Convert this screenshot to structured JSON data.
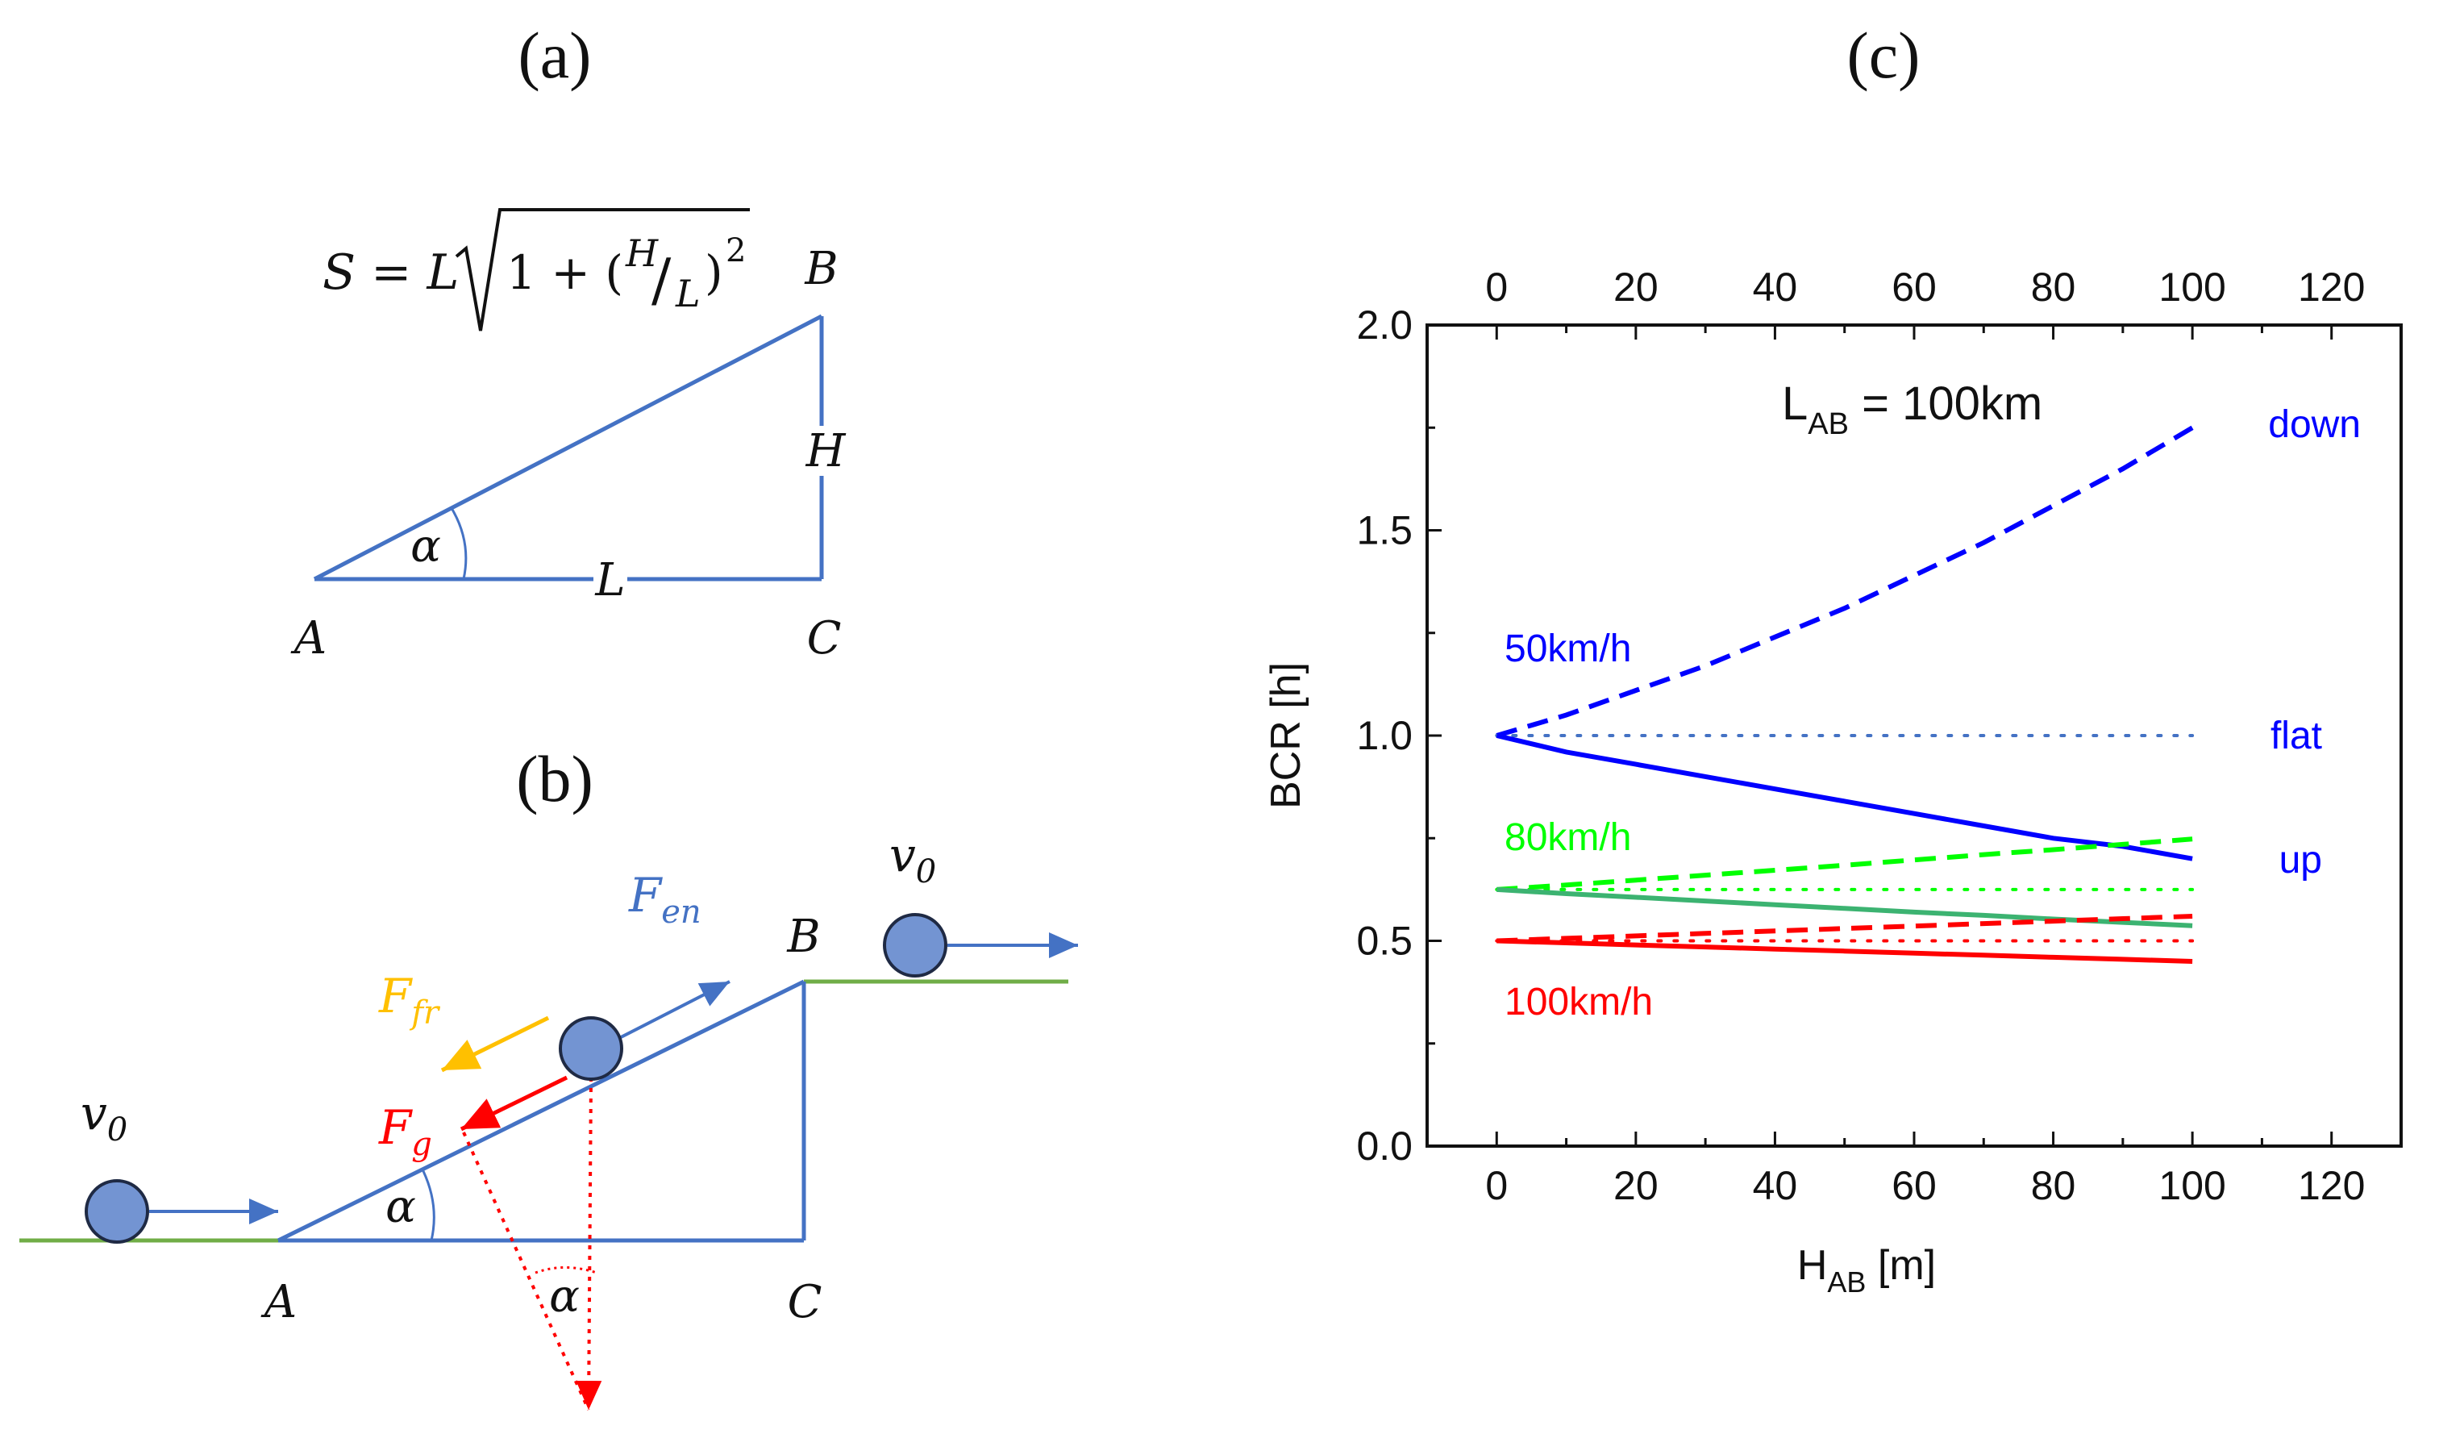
{
  "panels": {
    "a": {
      "label": "(a)"
    },
    "b": {
      "label": "(b)"
    },
    "c": {
      "label": "(c)"
    }
  },
  "diagram_a": {
    "formula_lhs": "S = L",
    "formula_rad_1": "1 + (",
    "formula_H": "H",
    "formula_slash": "/",
    "formula_L": "L",
    "formula_close": ")",
    "formula_exp": "2",
    "vertex_a": "A",
    "vertex_b": "B",
    "vertex_c": "C",
    "side_h": "H",
    "side_l": "L",
    "angle": "α"
  },
  "diagram_b": {
    "v0_left": "v",
    "v0_left_sub": "0",
    "v0_right": "v",
    "v0_right_sub": "0",
    "f_en": "F",
    "f_en_sub": "en",
    "f_fr": "F",
    "f_fr_sub": "fr",
    "f_g": "F",
    "f_g_sub": "g",
    "vertex_a": "A",
    "vertex_b": "B",
    "vertex_c": "C",
    "angle_incline": "α",
    "angle_force": "α",
    "colors": {
      "incline": "#4472c4",
      "ground": "#70ad47",
      "ball_fill": "#7394d2",
      "friction": "#ffc000",
      "gravity": "#ff0000"
    }
  },
  "chart_data": {
    "type": "line",
    "annotation_main": "L",
    "annotation_sub": "AB",
    "annotation_rest": " = 100km",
    "xlabel": "H",
    "xlabel_sub": "AB",
    "xlabel_unit": " [m]",
    "ylabel": "BCR [h]",
    "xlim": [
      -10,
      130
    ],
    "ylim": [
      0.0,
      2.0
    ],
    "x_ticks": [
      0,
      20,
      40,
      60,
      80,
      100,
      120
    ],
    "x_tick_labels": [
      "0",
      "20",
      "40",
      "60",
      "80",
      "100",
      "120"
    ],
    "y_ticks": [
      0.0,
      0.5,
      1.0,
      1.5,
      2.0
    ],
    "y_tick_labels": [
      "0.0",
      "0.5",
      "1.0",
      "1.5",
      "2.0"
    ],
    "speed_labels": [
      {
        "text": "50km/h",
        "color": "#0000ff"
      },
      {
        "text": "80km/h",
        "color": "#00ff00"
      },
      {
        "text": "100km/h",
        "color": "#ff0000"
      }
    ],
    "direction_labels": [
      {
        "text": "down",
        "color": "#0000ff"
      },
      {
        "text": "flat",
        "color": "#0000ff"
      },
      {
        "text": "up",
        "color": "#0000ff"
      }
    ],
    "x": [
      0,
      10,
      20,
      30,
      40,
      50,
      60,
      70,
      80,
      90,
      100
    ],
    "series": [
      {
        "name": "50km/h down",
        "style": "dashed",
        "color": "#0000ff",
        "values": [
          1.0,
          1.05,
          1.11,
          1.17,
          1.24,
          1.31,
          1.39,
          1.47,
          1.56,
          1.65,
          1.75
        ]
      },
      {
        "name": "50km/h flat",
        "style": "dotted",
        "color": "#4472c4",
        "values": [
          1.0,
          1.0,
          1.0,
          1.0,
          1.0,
          1.0,
          1.0,
          1.0,
          1.0,
          1.0,
          1.0
        ]
      },
      {
        "name": "50km/h up",
        "style": "solid",
        "color": "#0000ff",
        "values": [
          1.0,
          0.96,
          0.93,
          0.9,
          0.87,
          0.84,
          0.81,
          0.78,
          0.75,
          0.73,
          0.7
        ]
      },
      {
        "name": "80km/h down",
        "style": "dashed",
        "color": "#00ff00",
        "values": [
          0.625,
          0.636,
          0.648,
          0.66,
          0.672,
          0.684,
          0.697,
          0.71,
          0.722,
          0.735,
          0.748
        ]
      },
      {
        "name": "80km/h flat",
        "style": "dotted",
        "color": "#00ff00",
        "values": [
          0.625,
          0.625,
          0.625,
          0.625,
          0.625,
          0.625,
          0.625,
          0.625,
          0.625,
          0.625,
          0.625
        ]
      },
      {
        "name": "80km/h up",
        "style": "solid",
        "color": "#3cb371",
        "values": [
          0.625,
          0.615,
          0.606,
          0.597,
          0.588,
          0.579,
          0.57,
          0.562,
          0.553,
          0.545,
          0.537
        ]
      },
      {
        "name": "100km/h down",
        "style": "dashed",
        "color": "#ff0000",
        "values": [
          0.5,
          0.506,
          0.512,
          0.518,
          0.524,
          0.53,
          0.536,
          0.542,
          0.548,
          0.554,
          0.56
        ]
      },
      {
        "name": "100km/h flat",
        "style": "dotted",
        "color": "#ff0000",
        "values": [
          0.5,
          0.5,
          0.5,
          0.5,
          0.5,
          0.5,
          0.5,
          0.5,
          0.5,
          0.5,
          0.5
        ]
      },
      {
        "name": "100km/h up",
        "style": "solid",
        "color": "#ff0000",
        "values": [
          0.5,
          0.495,
          0.49,
          0.485,
          0.48,
          0.475,
          0.47,
          0.465,
          0.46,
          0.455,
          0.45
        ]
      }
    ]
  }
}
